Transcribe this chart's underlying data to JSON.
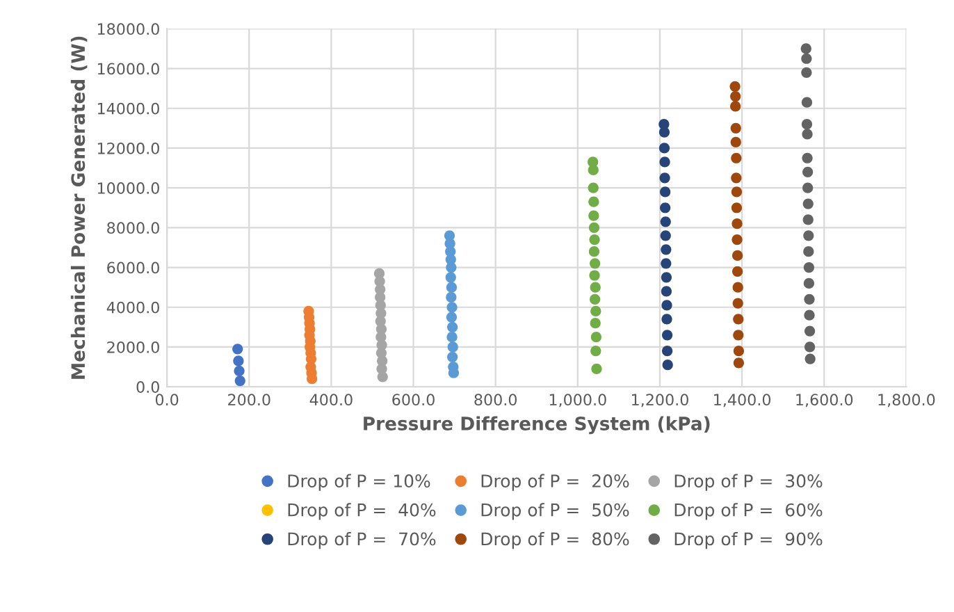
{
  "chart_data": {
    "type": "scatter",
    "xlabel": "Pressure Difference System (kPa)",
    "ylabel": "Mechanical Power Generated (W)",
    "xlim": [
      0,
      1800
    ],
    "ylim": [
      0,
      18000
    ],
    "xticks": [
      {
        "value": 0,
        "label": "0.0"
      },
      {
        "value": 200,
        "label": "200.0"
      },
      {
        "value": 400,
        "label": "400.0"
      },
      {
        "value": 600,
        "label": "600.0"
      },
      {
        "value": 800,
        "label": "800.0"
      },
      {
        "value": 1000,
        "label": "1,000.0"
      },
      {
        "value": 1200,
        "label": "1,200.0"
      },
      {
        "value": 1400,
        "label": "1,400.0"
      },
      {
        "value": 1600,
        "label": "1,600.0"
      },
      {
        "value": 1800,
        "label": "1,800.0"
      }
    ],
    "yticks": [
      {
        "value": 0,
        "label": "0.0"
      },
      {
        "value": 2000,
        "label": "2000.0"
      },
      {
        "value": 4000,
        "label": "4000.0"
      },
      {
        "value": 6000,
        "label": "6000.0"
      },
      {
        "value": 8000,
        "label": "8000.0"
      },
      {
        "value": 10000,
        "label": "10000.0"
      },
      {
        "value": 12000,
        "label": "12000.0"
      },
      {
        "value": 14000,
        "label": "14000.0"
      },
      {
        "value": 16000,
        "label": "16000.0"
      },
      {
        "value": 18000,
        "label": "18000.0"
      }
    ],
    "grid": true,
    "legend": "bottom",
    "marker": "circle",
    "series": [
      {
        "name": "Drop of P = 10%",
        "color": "#4472c4",
        "x": [
          172,
          174,
          176,
          178
        ],
        "values": [
          1900,
          1300,
          800,
          300
        ]
      },
      {
        "name": "Drop of P =  20%",
        "color": "#ed7d31",
        "x": [
          345,
          346,
          347,
          348,
          347,
          349,
          348,
          350,
          351,
          350,
          352,
          353
        ],
        "values": [
          3800,
          3500,
          3200,
          2900,
          2600,
          2300,
          2000,
          1700,
          1400,
          1000,
          700,
          400
        ]
      },
      {
        "name": "Drop of P =  30%",
        "color": "#a5a5a5",
        "x": [
          517,
          518,
          519,
          519,
          520,
          521,
          520,
          522,
          521,
          523,
          522,
          524,
          523,
          525
        ],
        "values": [
          5700,
          5300,
          4900,
          4500,
          4100,
          3700,
          3300,
          2900,
          2500,
          2100,
          1700,
          1300,
          900,
          500
        ]
      },
      {
        "name": "Drop of P =  40%",
        "color": "#ffc000"
      },
      {
        "name": "Drop of P =  50%",
        "color": "#5b9bd5",
        "x": [
          688,
          689,
          690,
          691,
          692,
          691,
          693,
          692,
          694,
          693,
          695,
          694,
          696,
          695,
          697,
          698
        ],
        "values": [
          7600,
          7200,
          6800,
          6400,
          6000,
          5500,
          5000,
          4500,
          4000,
          3500,
          3000,
          2500,
          2000,
          1500,
          1000,
          700
        ]
      },
      {
        "name": "Drop of P =  60%",
        "color": "#70ad47",
        "x": [
          1037,
          1038,
          1038,
          1039,
          1039,
          1040,
          1041,
          1040,
          1042,
          1041,
          1043,
          1042,
          1044,
          1043,
          1045,
          1044,
          1046
        ],
        "values": [
          11300,
          10900,
          10000,
          9300,
          8600,
          8000,
          7400,
          6800,
          6200,
          5600,
          5000,
          4400,
          3800,
          3200,
          2500,
          1800,
          900
        ]
      },
      {
        "name": "Drop of P =  70%",
        "color": "#264478",
        "x": [
          1210,
          1211,
          1211,
          1212,
          1212,
          1213,
          1213,
          1214,
          1214,
          1215,
          1215,
          1216,
          1216,
          1217,
          1217,
          1218,
          1218,
          1219
        ],
        "values": [
          13200,
          12800,
          12000,
          11300,
          10500,
          9800,
          9000,
          8300,
          7600,
          6900,
          6200,
          5500,
          4800,
          4100,
          3400,
          2600,
          1800,
          1100
        ]
      },
      {
        "name": "Drop of P =  80%",
        "color": "#9e480e",
        "x": [
          1383,
          1384,
          1384,
          1385,
          1385,
          1386,
          1386,
          1387,
          1387,
          1388,
          1388,
          1389,
          1389,
          1390,
          1390,
          1391,
          1391,
          1392,
          1392
        ],
        "values": [
          15100,
          14600,
          14100,
          13000,
          12300,
          11500,
          10500,
          9800,
          9000,
          8200,
          7400,
          6600,
          5800,
          5000,
          4200,
          3400,
          2600,
          1800,
          1200
        ]
      },
      {
        "name": "Drop of P =  90%",
        "color": "#636363",
        "x": [
          1556,
          1557,
          1557,
          1558,
          1558,
          1559,
          1559,
          1560,
          1560,
          1561,
          1561,
          1562,
          1562,
          1563,
          1563,
          1564,
          1564,
          1565,
          1565,
          1566
        ],
        "values": [
          17000,
          16500,
          15800,
          14300,
          13200,
          12700,
          11500,
          10800,
          10000,
          9200,
          8400,
          7600,
          6800,
          6000,
          5200,
          4400,
          3600,
          2800,
          2000,
          1400
        ]
      }
    ]
  }
}
